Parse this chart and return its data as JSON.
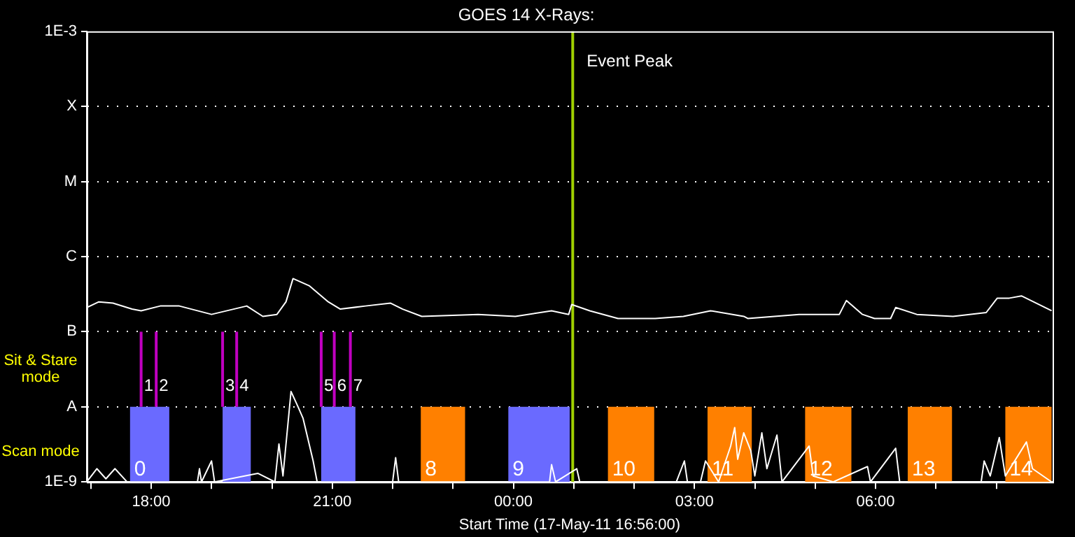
{
  "chart_data": {
    "type": "line",
    "title": "GOES 14 X-Rays:",
    "xlabel": "Start Time (17-May-11 16:56:00)",
    "log": "y",
    "grid": "y",
    "legend": false,
    "marker": "none",
    "line_style": "solid",
    "xlim": [
      "--05-17T16:56",
      "--05-18T08:56"
    ],
    "xticks": [
      {
        "value": "--05-17T17:00",
        "label": null
      },
      {
        "value": "--05-17T18:00",
        "label": "18:00"
      },
      {
        "value": "--05-17T19:00",
        "label": null
      },
      {
        "value": "--05-17T20:00",
        "label": null
      },
      {
        "value": "--05-17T21:00",
        "label": "21:00"
      },
      {
        "value": "--05-17T22:00",
        "label": null
      },
      {
        "value": "--05-17T23:00",
        "label": null
      },
      {
        "value": "--05-18T00:00",
        "label": "00:00"
      },
      {
        "value": "--05-18T01:00",
        "label": null
      },
      {
        "value": "--05-18T02:00",
        "label": null
      },
      {
        "value": "--05-18T03:00",
        "label": "03:00"
      },
      {
        "value": "--05-18T04:00",
        "label": null
      },
      {
        "value": "--05-18T05:00",
        "label": null
      },
      {
        "value": "--05-18T06:00",
        "label": "06:00"
      },
      {
        "value": "--05-18T07:00",
        "label": null
      },
      {
        "value": "--05-18T08:00",
        "label": null
      }
    ],
    "ylim": [
      1e-09,
      0.001
    ],
    "yticks": [
      {
        "value": 1e-09,
        "label": "1E-9"
      },
      {
        "value": 1e-08,
        "label": "A"
      },
      {
        "value": 1e-07,
        "label": "B"
      },
      {
        "value": 1e-06,
        "label": "C"
      },
      {
        "value": 1e-05,
        "label": "M"
      },
      {
        "value": 0.0001,
        "label": "X"
      },
      {
        "value": 0.001,
        "label": "1E-3"
      }
    ],
    "series": [
      {
        "color": "#ffffff",
        "x": [
          "--05-17T16:56",
          "--05-17T17:08",
          "--05-17T17:22",
          "--05-17T17:41",
          "--05-17T17:50",
          "--05-17T18:09",
          "--05-17T18:28",
          "--05-17T19:00",
          "--05-17T19:35",
          "--05-17T19:51",
          "--05-17T20:05",
          "--05-17T20:14",
          "--05-17T20:21",
          "--05-17T20:37",
          "--05-17T20:56",
          "--05-17T21:08",
          "--05-17T21:33",
          "--05-17T21:58",
          "--05-17T22:10",
          "--05-17T22:29",
          "--05-17T23:25",
          "--05-18T00:02",
          "--05-18T00:38",
          "--05-18T00:55",
          "--05-18T00:58",
          "--05-18T01:16",
          "--05-18T01:44",
          "--05-18T02:21",
          "--05-18T02:49",
          "--05-18T03:16",
          "--05-18T03:49",
          "--05-18T03:53",
          "--05-18T04:44",
          "--05-18T05:24",
          "--05-18T05:31",
          "--05-18T05:47",
          "--05-18T05:59",
          "--05-18T06:15",
          "--05-18T06:20",
          "--05-18T06:41",
          "--05-18T07:17",
          "--05-18T07:50",
          "--05-18T08:01",
          "--05-18T08:13",
          "--05-18T08:25",
          "--05-18T08:55"
        ],
        "values": [
          2.1e-07,
          2.5e-07,
          2.4e-07,
          2e-07,
          1.9e-07,
          2.2e-07,
          2.2e-07,
          1.7e-07,
          2.2e-07,
          1.6e-07,
          1.7e-07,
          2.5e-07,
          5.1e-07,
          4.1e-07,
          2.5e-07,
          2e-07,
          2.2e-07,
          2.4e-07,
          2e-07,
          1.6e-07,
          1.7e-07,
          1.6e-07,
          1.9e-07,
          1.7e-07,
          2.3e-07,
          1.9e-07,
          1.5e-07,
          1.5e-07,
          1.6e-07,
          1.9e-07,
          1.6e-07,
          1.5e-07,
          1.7e-07,
          1.7e-07,
          2.6e-07,
          1.7e-07,
          1.5e-07,
          1.5e-07,
          2.1e-07,
          1.7e-07,
          1.6e-07,
          1.8e-07,
          2.8e-07,
          2.8e-07,
          3e-07,
          1.9e-07
        ]
      },
      {
        "color": "#ffffff",
        "x": [
          "--05-17T16:56",
          "--05-17T17:06",
          "--05-17T17:15",
          "--05-17T17:24",
          "--05-17T17:36",
          "--05-17T18:06",
          "--05-17T18:46",
          "--05-17T18:48",
          "--05-17T18:50",
          "--05-17T19:00",
          "--05-17T19:03",
          "--05-17T19:46",
          "--05-17T20:03",
          "--05-17T20:07",
          "--05-17T20:11",
          "--05-17T20:19",
          "--05-17T20:26",
          "--05-17T20:31",
          "--05-17T20:41",
          "--05-17T20:45",
          "--05-17T22:00",
          "--05-17T22:03",
          "--05-17T22:06",
          "--05-18T00:36",
          "--05-18T00:38",
          "--05-18T00:42",
          "--05-18T01:03",
          "--05-18T01:06",
          "--05-18T02:42",
          "--05-18T02:50",
          "--05-18T02:53",
          "--05-18T03:06",
          "--05-18T03:11",
          "--05-18T03:24",
          "--05-18T03:36",
          "--05-18T03:40",
          "--05-18T03:43",
          "--05-18T03:49",
          "--05-18T03:56",
          "--05-18T04:00",
          "--05-18T04:07",
          "--05-18T04:12",
          "--05-18T04:22",
          "--05-18T04:27",
          "--05-18T04:54",
          "--05-18T04:58",
          "--05-18T05:18",
          "--05-18T05:52",
          "--05-18T05:55",
          "--05-18T06:20",
          "--05-18T06:24",
          "--05-18T07:45",
          "--05-18T07:48",
          "--05-18T07:54",
          "--05-18T08:03",
          "--05-18T08:09",
          "--05-18T08:30",
          "--05-18T08:36",
          "--05-18T08:55"
        ],
        "values": [
          1e-09,
          1.5e-09,
          1.1e-09,
          1.5e-09,
          1e-09,
          1e-09,
          1e-09,
          1.5e-09,
          1e-09,
          1.9e-09,
          1e-09,
          1.3e-09,
          1e-09,
          3.2e-09,
          1.2e-09,
          1.6e-08,
          1e-08,
          7e-09,
          1.9e-09,
          1e-09,
          1e-09,
          2.1e-09,
          1e-09,
          1e-09,
          1.7e-09,
          1e-09,
          1.5e-09,
          1e-09,
          1e-09,
          1.9e-09,
          1e-09,
          1e-09,
          1.9e-09,
          1e-09,
          3e-09,
          5.3e-09,
          2e-09,
          4.5e-09,
          2.6e-09,
          1.2e-09,
          4.5e-09,
          1.5e-09,
          4.2e-09,
          1e-09,
          3e-09,
          1.2e-09,
          1e-09,
          1.6e-09,
          1e-09,
          2.8e-09,
          1e-09,
          1e-09,
          1.9e-09,
          1.2e-09,
          3.9e-09,
          1.2e-09,
          3.4e-09,
          1.5e-09,
          1e-09
        ]
      }
    ],
    "ref_lines": [
      {
        "axis": "x",
        "value": "--05-18T00:59",
        "label": "Event Peak",
        "color": "#a0d000"
      },
      {
        "axis": "x",
        "value": "--05-17T17:50",
        "label": "1",
        "color": "#c000c0"
      },
      {
        "axis": "x",
        "value": "--05-17T18:05",
        "label": "2",
        "color": "#c000c0"
      },
      {
        "axis": "x",
        "value": "--05-17T19:11",
        "label": "3",
        "color": "#c000c0"
      },
      {
        "axis": "x",
        "value": "--05-17T19:25",
        "label": "4",
        "color": "#c000c0"
      },
      {
        "axis": "x",
        "value": "--05-17T20:49",
        "label": "5",
        "color": "#c000c0"
      },
      {
        "axis": "x",
        "value": "--05-17T21:02",
        "label": "6",
        "color": "#c000c0"
      },
      {
        "axis": "x",
        "value": "--05-17T21:18",
        "label": "7",
        "color": "#c000c0"
      }
    ],
    "bands": [
      {
        "axis": "x",
        "from": "--05-17T17:39",
        "to": "--05-17T18:18",
        "label": "0",
        "color": "#6a6aff"
      },
      {
        "axis": "x",
        "from": "--05-17T19:11",
        "to": "--05-17T19:39",
        "color": "#6a6aff"
      },
      {
        "axis": "x",
        "from": "--05-17T20:49",
        "to": "--05-17T21:23",
        "color": "#6a6aff"
      },
      {
        "axis": "x",
        "from": "--05-17T22:28",
        "to": "--05-17T23:12",
        "label": "8",
        "color": "#ff8000"
      },
      {
        "axis": "x",
        "from": "--05-17T23:55",
        "to": "--05-18T00:56",
        "label": "9",
        "color": "#6a6aff"
      },
      {
        "axis": "x",
        "from": "--05-18T01:34",
        "to": "--05-18T02:20",
        "label": "10",
        "color": "#ff8000"
      },
      {
        "axis": "x",
        "from": "--05-18T03:13",
        "to": "--05-18T03:57",
        "label": "11",
        "color": "#ff8000"
      },
      {
        "axis": "x",
        "from": "--05-18T04:50",
        "to": "--05-18T05:36",
        "label": "12",
        "color": "#ff8000"
      },
      {
        "axis": "x",
        "from": "--05-18T06:32",
        "to": "--05-18T07:16",
        "label": "13",
        "color": "#ff8000"
      },
      {
        "axis": "x",
        "from": "--05-18T08:09",
        "to": "--05-18T08:55",
        "label": "14",
        "color": "#ff8000"
      }
    ],
    "annotations": [
      "Sit & Stare mode",
      "Scan mode"
    ]
  }
}
